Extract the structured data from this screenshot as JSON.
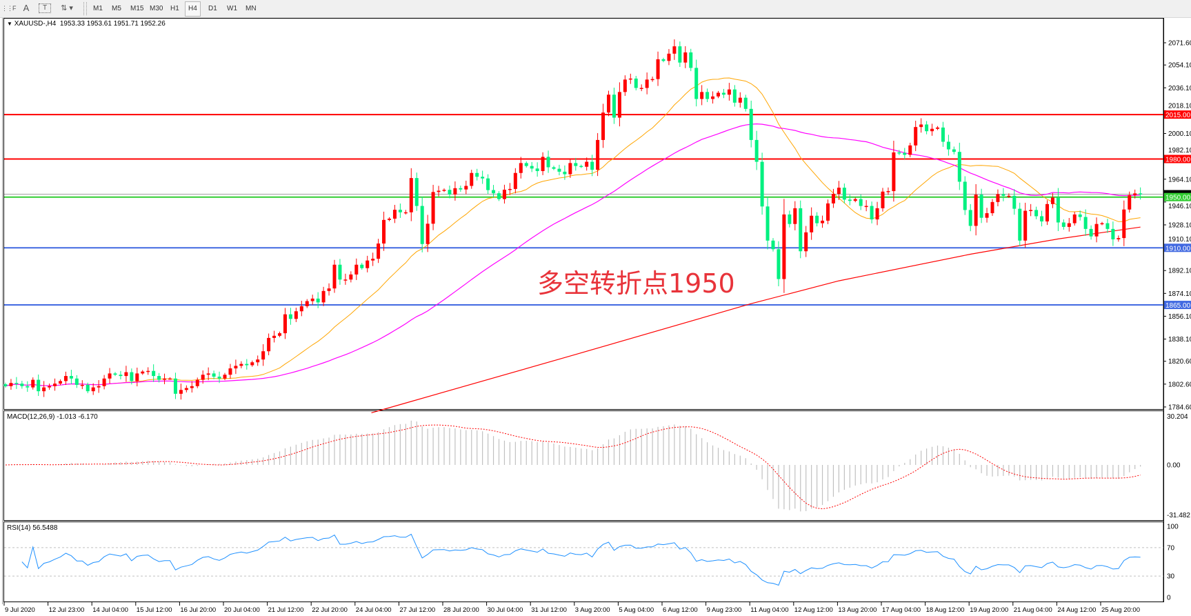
{
  "toolbar": {
    "icons": [
      "grid-icon",
      "text-icon",
      "text-label-icon",
      "arrows-icon"
    ],
    "timeframes": [
      "M1",
      "M5",
      "M15",
      "M30",
      "H1",
      "H4",
      "D1",
      "W1",
      "MN"
    ],
    "active_timeframe": "H4"
  },
  "chart": {
    "symbol": "XAUUSD-,H4",
    "ohlc": "1953.33 1953.61 1951.71 1952.26",
    "annotation": "多空转折点1950",
    "colors": {
      "bull": "#ff0000",
      "bear": "#00f080",
      "ma_fast": "#ffa500",
      "ma_mid": "#ff00ff",
      "ma_slow": "#ff0000"
    }
  },
  "price_axis": [
    "2071.60",
    "2054.10",
    "2036.10",
    "2018.10",
    "2000.10",
    "1982.10",
    "1964.10",
    "1946.10",
    "1928.10",
    "1910.10",
    "1892.10",
    "1874.10",
    "1856.10",
    "1838.10",
    "1820.60",
    "1802.60",
    "1784.60"
  ],
  "levels": [
    {
      "price": "2015.00",
      "color": "#ff0000"
    },
    {
      "price": "1980.00",
      "color": "#ff0000"
    },
    {
      "price": "1950.00",
      "color": "#32cd32"
    },
    {
      "price": "1910.00",
      "color": "#4169e1"
    },
    {
      "price": "1865.00",
      "color": "#4169e1"
    }
  ],
  "current_price": "1952.26",
  "macd": {
    "name": "MACD(12,26,9)",
    "main": "-1.013",
    "signal": "-6.170",
    "axis": [
      "30.204",
      "0.00",
      "-31.482"
    ]
  },
  "rsi": {
    "name": "RSI(14)",
    "value": "56.5488",
    "axis": [
      "100",
      "70",
      "30",
      "0"
    ],
    "color": "#1e90ff"
  },
  "time_axis": [
    "9 Jul 2020",
    "12 Jul 23:00",
    "14 Jul 04:00",
    "15 Jul 12:00",
    "16 Jul 20:00",
    "20 Jul 04:00",
    "21 Jul 12:00",
    "22 Jul 20:00",
    "24 Jul 04:00",
    "27 Jul 12:00",
    "28 Jul 20:00",
    "30 Jul 04:00",
    "31 Jul 12:00",
    "3 Aug 20:00",
    "5 Aug 04:00",
    "6 Aug 12:00",
    "9 Aug 23:00",
    "11 Aug 04:00",
    "12 Aug 12:00",
    "13 Aug 20:00",
    "17 Aug 04:00",
    "18 Aug 12:00",
    "19 Aug 20:00",
    "21 Aug 04:00",
    "24 Aug 12:00",
    "25 Aug 20:00"
  ],
  "chart_data": {
    "type": "candlestick",
    "ylim": [
      1784.6,
      2071.6
    ],
    "close": [
      1801,
      1803.5,
      1803,
      1801,
      1800,
      1806,
      1797,
      1800,
      1801,
      1803,
      1805,
      1809,
      1807,
      1802,
      1802,
      1797,
      1800,
      1801,
      1807,
      1811,
      1810,
      1809,
      1812,
      1805,
      1811,
      1812.5,
      1813,
      1809,
      1806,
      1807,
      1807,
      1795,
      1798,
      1799.5,
      1801,
      1806,
      1810,
      1811,
      1808.5,
      1807,
      1810,
      1815,
      1817,
      1818.5,
      1817.5,
      1819.8,
      1822,
      1828.5,
      1839,
      1840.7,
      1842.7,
      1857.6,
      1854,
      1860,
      1864,
      1868,
      1870,
      1867,
      1876,
      1878,
      1896.7,
      1885,
      1885,
      1889,
      1896.7,
      1894,
      1900,
      1901.4,
      1913.4,
      1932,
      1933,
      1940,
      1938,
      1938,
      1965,
      1943,
      1913,
      1929,
      1954,
      1955,
      1955.7,
      1952,
      1957,
      1956,
      1958.8,
      1969,
      1966,
      1964.7,
      1955.5,
      1953,
      1948.4,
      1955.8,
      1956.4,
      1969,
      1976.8,
      1974.5,
      1972.5,
      1970.5,
      1981.7,
      1973.5,
      1972.3,
      1970,
      1968,
      1976.8,
      1974.5,
      1973.9,
      1977.8,
      1971.5,
      1995,
      2016.6,
      2030.7,
      2012.6,
      2032.8,
      2042.6,
      2043.4,
      2036,
      2036,
      2042.6,
      2043,
      2058.6,
      2057.3,
      2063,
      2068.8,
      2056,
      2064,
      2051.8,
      2027.3,
      2032.8,
      2027.3,
      2029.3,
      2032.2,
      2030.7,
      2034.8,
      2024.4,
      2028.3,
      2019.5,
      1995,
      1977.8,
      1942.6,
      1915.7,
      1908.9,
      1885.4,
      1936.3,
      1928.8,
      1941.2,
      1907.3,
      1922.2,
      1935.3,
      1929.4,
      1931.4,
      1945,
      1952.5,
      1957.4,
      1948,
      1947,
      1948.4,
      1943,
      1943,
      1932.4,
      1941.2,
      1954.3,
      1954.7,
      1985.2,
      1984.8,
      1983.3,
      1990.7,
      2005.2,
      2007.2,
      2001.9,
      2003.8,
      2004.8,
      1993.6,
      1987.6,
      1985.6,
      1962.1,
      1939.8,
      1927.3,
      1951.9,
      1933.7,
      1937.3,
      1946.1,
      1952.3,
      1951,
      1951,
      1940.8,
      1915.7,
      1939.2,
      1939.8,
      1934.9,
      1930.8,
      1944.5,
      1949.6,
      1930,
      1926.5,
      1929.4,
      1936.3,
      1934.3,
      1924.9,
      1919,
      1928.8,
      1929.4,
      1924.9,
      1916.7,
      1917.7,
      1940.2,
      1951.6,
      1952.9,
      1952.26
    ],
    "ma_slow": [
      {
        "date": "27 Jul 12:00",
        "value": 1786.5
      },
      {
        "date": "3 Aug 20:00",
        "value": 1826
      },
      {
        "date": "11 Aug 04:00",
        "value": 1866
      },
      {
        "date": "13 Aug 20:00",
        "value": 1884
      },
      {
        "date": "19 Aug 20:00",
        "value": 1905
      },
      {
        "date": "24 Aug 12:00",
        "value": 1917
      },
      {
        "date": "25 Aug 20:00",
        "value": 1922
      }
    ]
  }
}
